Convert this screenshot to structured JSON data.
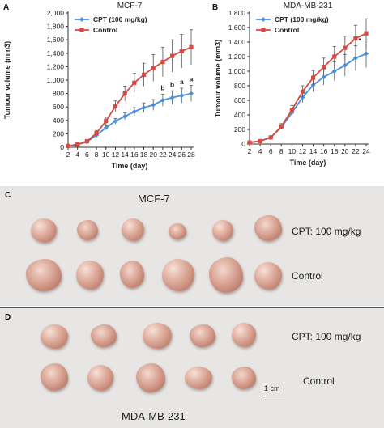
{
  "panels": {
    "a_letter": "A",
    "b_letter": "B",
    "c_letter": "C",
    "d_letter": "D"
  },
  "photos": {
    "c_title": "MCF-7",
    "c_row1_label": "CPT: 100 mg/kg",
    "c_row2_label": "Control",
    "d_row1_label": "CPT: 100 mg/kg",
    "d_row2_label": "Control",
    "d_bottom_title": "MDA-MB-231",
    "scale_label": "1 cm"
  },
  "chart_data": [
    {
      "type": "line",
      "title": "MCF-7",
      "xlabel": "Time (day)",
      "ylabel": "Tumour volume (mm3)",
      "x": [
        2,
        4,
        6,
        8,
        10,
        12,
        14,
        16,
        18,
        20,
        22,
        24,
        26,
        28
      ],
      "xlim": [
        2,
        28
      ],
      "ylim": [
        0,
        2000
      ],
      "xticks": [
        "2",
        "4",
        "6",
        "8",
        "10",
        "12",
        "14",
        "16",
        "18",
        "20",
        "22",
        "24",
        "26",
        "28"
      ],
      "yticks": [
        "0",
        "200",
        "400",
        "600",
        "800",
        "1,000",
        "1,200",
        "1,400",
        "1,600",
        "1,800",
        "2,000"
      ],
      "legend_position": "top-left",
      "series": [
        {
          "name": "CPT (100 mg/kg)",
          "color": "#4a90d9",
          "marker": "diamond",
          "values": [
            20,
            40,
            80,
            180,
            290,
            390,
            460,
            530,
            590,
            630,
            700,
            740,
            770,
            800
          ],
          "errors": [
            5,
            10,
            15,
            20,
            30,
            40,
            50,
            60,
            70,
            80,
            90,
            100,
            110,
            120
          ]
        },
        {
          "name": "Control",
          "color": "#d64a42",
          "marker": "square",
          "values": [
            20,
            40,
            90,
            210,
            390,
            610,
            800,
            960,
            1080,
            1180,
            1270,
            1360,
            1430,
            1490
          ],
          "errors": [
            5,
            10,
            20,
            40,
            60,
            80,
            110,
            140,
            170,
            200,
            220,
            240,
            250,
            260
          ]
        }
      ],
      "annotations": [
        {
          "x": 22,
          "text": "b"
        },
        {
          "x": 24,
          "text": "b"
        },
        {
          "x": 26,
          "text": "a"
        },
        {
          "x": 28,
          "text": "a"
        }
      ]
    },
    {
      "type": "line",
      "title": "MDA-MB-231",
      "xlabel": "Time (day)",
      "ylabel": "Tumour volume (mm3)",
      "x": [
        2,
        4,
        6,
        8,
        10,
        12,
        14,
        16,
        18,
        20,
        22,
        24
      ],
      "xlim": [
        2,
        24
      ],
      "ylim": [
        0,
        1800
      ],
      "xticks": [
        "2",
        "4",
        "6",
        "8",
        "10",
        "12",
        "14",
        "16",
        "18",
        "20",
        "22",
        "24"
      ],
      "yticks": [
        "0",
        "200",
        "400",
        "600",
        "800",
        "1,000",
        "1,200",
        "1,400",
        "1,600",
        "1,800"
      ],
      "legend_position": "top-left",
      "series": [
        {
          "name": "CPT (100 mg/kg)",
          "color": "#4a90d9",
          "marker": "diamond",
          "values": [
            20,
            40,
            90,
            230,
            430,
            640,
            810,
            920,
            1000,
            1080,
            1180,
            1240
          ],
          "errors": [
            5,
            10,
            20,
            30,
            50,
            70,
            90,
            110,
            130,
            150,
            170,
            190
          ]
        },
        {
          "name": "Control",
          "color": "#d64a42",
          "marker": "square",
          "values": [
            20,
            40,
            90,
            240,
            470,
            720,
            910,
            1060,
            1200,
            1320,
            1450,
            1520
          ],
          "errors": [
            5,
            10,
            20,
            40,
            60,
            80,
            100,
            120,
            140,
            160,
            180,
            200
          ]
        }
      ],
      "annotations": [
        {
          "x": 24,
          "text": "*"
        }
      ]
    }
  ]
}
